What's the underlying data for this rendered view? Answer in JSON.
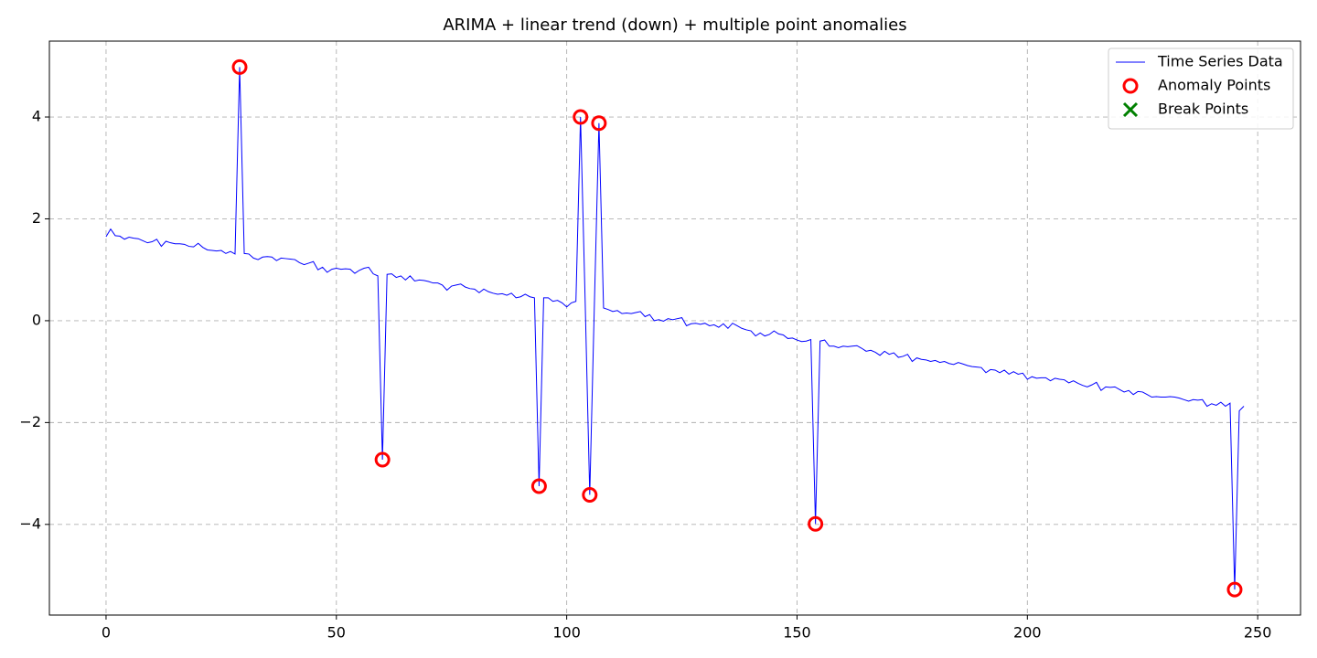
{
  "chart_data": {
    "type": "line",
    "title": "ARIMA + linear trend (down) + multiple point anomalies",
    "x": [
      0,
      1,
      2,
      3,
      4,
      5,
      6,
      7,
      8,
      9,
      10,
      11,
      12,
      13,
      14,
      15,
      16,
      17,
      18,
      19,
      20,
      21,
      22,
      23,
      24,
      25,
      26,
      27,
      28,
      29,
      30,
      31,
      32,
      33,
      34,
      35,
      36,
      37,
      38,
      39,
      40,
      41,
      42,
      43,
      44,
      45,
      46,
      47,
      48,
      49,
      50,
      51,
      52,
      53,
      54,
      55,
      56,
      57,
      58,
      59,
      60,
      61,
      62,
      63,
      64,
      65,
      66,
      67,
      68,
      69,
      70,
      71,
      72,
      73,
      74,
      75,
      76,
      77,
      78,
      79,
      80,
      81,
      82,
      83,
      84,
      85,
      86,
      87,
      88,
      89,
      90,
      91,
      92,
      93,
      94,
      95,
      96,
      97,
      98,
      99,
      100,
      101,
      102,
      103,
      104,
      105,
      106,
      107,
      108,
      109,
      110,
      111,
      112,
      113,
      114,
      115,
      116,
      117,
      118,
      119,
      120,
      121,
      122,
      123,
      124,
      125,
      126,
      127,
      128,
      129,
      130,
      131,
      132,
      133,
      134,
      135,
      136,
      137,
      138,
      139,
      140,
      141,
      142,
      143,
      144,
      145,
      146,
      147,
      148,
      149,
      150,
      151,
      152,
      153,
      154,
      155,
      156,
      157,
      158,
      159,
      160,
      161,
      162,
      163,
      164,
      165,
      166,
      167,
      168,
      169,
      170,
      171,
      172,
      173,
      174,
      175,
      176,
      177,
      178,
      179,
      180,
      181,
      182,
      183,
      184,
      185,
      186,
      187,
      188,
      189,
      190,
      191,
      192,
      193,
      194,
      195,
      196,
      197,
      198,
      199,
      200,
      201,
      202,
      203,
      204,
      205,
      206,
      207,
      208,
      209,
      210,
      211,
      212,
      213,
      214,
      215,
      216,
      217,
      218,
      219,
      220,
      221,
      222,
      223,
      224,
      225,
      226,
      227,
      228,
      229,
      230,
      231,
      232,
      233,
      234,
      235,
      236,
      237,
      238,
      239,
      240,
      241,
      242,
      243,
      244,
      245,
      246,
      247
    ],
    "series": [
      {
        "name": "Time Series Data",
        "type": "line",
        "color": "#0000ff",
        "values": [
          1.65,
          1.8,
          1.67,
          1.66,
          1.6,
          1.64,
          1.62,
          1.61,
          1.57,
          1.53,
          1.55,
          1.6,
          1.46,
          1.56,
          1.53,
          1.51,
          1.51,
          1.5,
          1.46,
          1.45,
          1.52,
          1.44,
          1.39,
          1.38,
          1.37,
          1.38,
          1.32,
          1.36,
          1.31,
          4.98,
          1.32,
          1.31,
          1.23,
          1.2,
          1.25,
          1.26,
          1.25,
          1.18,
          1.23,
          1.22,
          1.21,
          1.2,
          1.14,
          1.1,
          1.13,
          1.16,
          1.0,
          1.05,
          0.95,
          1.01,
          1.03,
          1.01,
          1.02,
          1.01,
          0.93,
          0.99,
          1.03,
          1.05,
          0.92,
          0.88,
          -2.73,
          0.91,
          0.92,
          0.85,
          0.88,
          0.8,
          0.88,
          0.78,
          0.8,
          0.79,
          0.77,
          0.74,
          0.74,
          0.7,
          0.6,
          0.68,
          0.7,
          0.72,
          0.66,
          0.63,
          0.62,
          0.55,
          0.62,
          0.57,
          0.54,
          0.52,
          0.53,
          0.5,
          0.54,
          0.45,
          0.47,
          0.52,
          0.47,
          0.45,
          -3.25,
          0.45,
          0.45,
          0.38,
          0.4,
          0.35,
          0.27,
          0.35,
          0.38,
          4.0,
          0.4,
          -3.42,
          0.3,
          3.88,
          0.25,
          0.22,
          0.18,
          0.2,
          0.14,
          0.15,
          0.14,
          0.16,
          0.18,
          0.08,
          0.12,
          0.0,
          0.02,
          -0.01,
          0.04,
          0.02,
          0.04,
          0.06,
          -0.1,
          -0.06,
          -0.05,
          -0.07,
          -0.05,
          -0.1,
          -0.08,
          -0.13,
          -0.06,
          -0.15,
          -0.05,
          -0.1,
          -0.15,
          -0.18,
          -0.2,
          -0.3,
          -0.24,
          -0.3,
          -0.27,
          -0.2,
          -0.26,
          -0.28,
          -0.35,
          -0.34,
          -0.38,
          -0.41,
          -0.4,
          -0.37,
          -3.99,
          -0.4,
          -0.38,
          -0.5,
          -0.5,
          -0.53,
          -0.5,
          -0.51,
          -0.5,
          -0.49,
          -0.54,
          -0.6,
          -0.58,
          -0.62,
          -0.68,
          -0.6,
          -0.66,
          -0.63,
          -0.72,
          -0.7,
          -0.66,
          -0.8,
          -0.73,
          -0.76,
          -0.77,
          -0.8,
          -0.78,
          -0.82,
          -0.8,
          -0.84,
          -0.86,
          -0.82,
          -0.85,
          -0.88,
          -0.9,
          -0.91,
          -0.92,
          -1.02,
          -0.96,
          -0.97,
          -1.02,
          -0.97,
          -1.05,
          -1.0,
          -1.05,
          -1.03,
          -1.15,
          -1.1,
          -1.13,
          -1.12,
          -1.12,
          -1.18,
          -1.13,
          -1.15,
          -1.16,
          -1.22,
          -1.18,
          -1.23,
          -1.27,
          -1.3,
          -1.26,
          -1.21,
          -1.37,
          -1.3,
          -1.31,
          -1.3,
          -1.35,
          -1.4,
          -1.37,
          -1.45,
          -1.39,
          -1.4,
          -1.45,
          -1.5,
          -1.49,
          -1.5,
          -1.5,
          -1.49,
          -1.5,
          -1.52,
          -1.55,
          -1.58,
          -1.55,
          -1.56,
          -1.55,
          -1.68,
          -1.63,
          -1.66,
          -1.6,
          -1.68,
          -1.62,
          -5.28,
          -1.77,
          -1.68
        ]
      },
      {
        "name": "Anomaly Points",
        "type": "scatter",
        "marker": "circle",
        "color": "#ff0000",
        "x": [
          29,
          60,
          94,
          103,
          105,
          107,
          154,
          245
        ],
        "values": [
          4.98,
          -2.73,
          -3.25,
          4.0,
          -3.42,
          3.88,
          -3.99,
          -5.28
        ]
      },
      {
        "name": "Break Points",
        "type": "scatter",
        "marker": "x",
        "color": "#008000",
        "x": [],
        "values": []
      }
    ],
    "xlim": [
      -12.3,
      259.3
    ],
    "ylim": [
      -5.78,
      5.49
    ],
    "xticks": [
      0,
      50,
      100,
      150,
      200,
      250
    ],
    "yticks": [
      {
        "value": -4,
        "label": "−4"
      },
      {
        "value": -2,
        "label": "−2"
      },
      0,
      2,
      4
    ],
    "grid": true,
    "legend": "upper right"
  }
}
